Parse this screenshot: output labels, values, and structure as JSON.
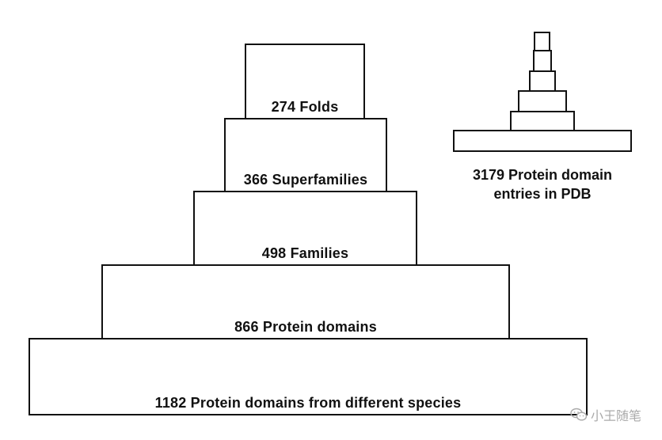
{
  "pyramid": {
    "folds": "274 Folds",
    "superfamilies": "366 Superfamilies",
    "families": "498 Families",
    "protein_domains": "866 Protein domains",
    "species_domains": "1182 Protein domains from different species"
  },
  "pdb_caption": {
    "line1": "3179 Protein domain",
    "line2": "entries in PDB"
  },
  "watermark": {
    "text": "小王随笔",
    "icon": "wechat-icon"
  }
}
